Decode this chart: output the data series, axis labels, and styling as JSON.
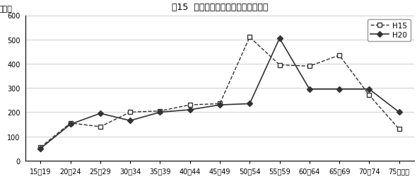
{
  "title": "囱15  男子年齢別漁業就業者数の推移",
  "ylabel": "（人）",
  "categories": [
    "15～19",
    "20～24",
    "25～29",
    "30～34",
    "35～39",
    "40～44",
    "45～49",
    "50～54",
    "55～59",
    "60～64",
    "65～69",
    "70～74",
    "75歳以上"
  ],
  "H15": [
    55,
    155,
    140,
    200,
    205,
    230,
    235,
    510,
    395,
    390,
    435,
    270,
    130
  ],
  "H20": [
    50,
    150,
    195,
    165,
    200,
    210,
    230,
    235,
    505,
    295,
    295,
    295,
    200
  ],
  "ylim": [
    0,
    600
  ],
  "yticks": [
    0,
    100,
    200,
    300,
    400,
    500,
    600
  ],
  "legend_H15": "H15",
  "legend_H20": "H20",
  "line_color": "#333333",
  "bg_color": "#ffffff",
  "grid_color": "#bbbbbb"
}
